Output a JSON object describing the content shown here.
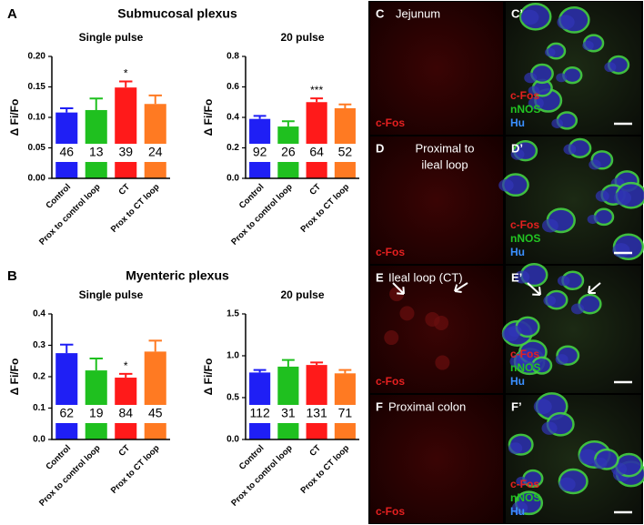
{
  "sections": [
    {
      "letter": "A",
      "title": "Submucosal plexus"
    },
    {
      "letter": "B",
      "title": "Myenteric plexus"
    }
  ],
  "chart_data": [
    {
      "type": "bar",
      "title": "Single pulse",
      "y_label": "Δ Fi/Fo",
      "categories": [
        "Control",
        "Prox to control loop",
        "CT",
        "Prox to CT loop"
      ],
      "values": [
        0.108,
        0.112,
        0.149,
        0.122
      ],
      "errors": [
        0.007,
        0.019,
        0.01,
        0.014
      ],
      "n": [
        46,
        13,
        39,
        24
      ],
      "significance": [
        null,
        null,
        "*",
        null
      ],
      "colors": [
        "#1f1ff5",
        "#1fc01f",
        "#ff1a1a",
        "#ff7a22"
      ],
      "ylim": [
        0,
        0.2
      ],
      "yticks": [
        {
          "value": 0,
          "label": "0.00"
        },
        {
          "value": 0.05,
          "label": "0.05"
        },
        {
          "value": 0.1,
          "label": "0.10"
        },
        {
          "value": 0.15,
          "label": "0.15"
        },
        {
          "value": 0.2,
          "label": "0.20"
        }
      ]
    },
    {
      "type": "bar",
      "title": "20 pulse",
      "y_label": "Δ Fi/Fo",
      "categories": [
        "Control",
        "Prox to control loop",
        "CT",
        "Prox to CT loop"
      ],
      "values": [
        0.39,
        0.34,
        0.5,
        0.46
      ],
      "errors": [
        0.02,
        0.035,
        0.025,
        0.025
      ],
      "n": [
        92,
        26,
        64,
        52
      ],
      "significance": [
        null,
        null,
        "***",
        null
      ],
      "colors": [
        "#1f1ff5",
        "#1fc01f",
        "#ff1a1a",
        "#ff7a22"
      ],
      "ylim": [
        0,
        0.8
      ],
      "yticks": [
        {
          "value": 0,
          "label": "0.0"
        },
        0.2,
        0.4,
        0.6,
        0.8
      ]
    },
    {
      "type": "bar",
      "title": "Single pulse",
      "y_label": "Δ Fi/Fo",
      "categories": [
        "Control",
        "Prox to control loop",
        "CT",
        "Prox to CT loop"
      ],
      "values": [
        0.275,
        0.22,
        0.197,
        0.28
      ],
      "errors": [
        0.027,
        0.038,
        0.012,
        0.035
      ],
      "n": [
        62,
        19,
        84,
        45
      ],
      "significance": [
        null,
        null,
        "*",
        null
      ],
      "colors": [
        "#1f1ff5",
        "#1fc01f",
        "#ff1a1a",
        "#ff7a22"
      ],
      "ylim": [
        0,
        0.4
      ],
      "yticks": [
        {
          "value": 0,
          "label": "0.0"
        },
        0.1,
        0.2,
        0.3,
        0.4
      ]
    },
    {
      "type": "bar",
      "title": "20 pulse",
      "y_label": "Δ Fi/Fo",
      "categories": [
        "Control",
        "Prox to control loop",
        "CT",
        "Prox to CT loop"
      ],
      "values": [
        0.8,
        0.87,
        0.89,
        0.79
      ],
      "errors": [
        0.03,
        0.08,
        0.03,
        0.04
      ],
      "n": [
        112,
        31,
        131,
        71
      ],
      "significance": [
        null,
        null,
        null,
        null
      ],
      "colors": [
        "#1f1ff5",
        "#1fc01f",
        "#ff1a1a",
        "#ff7a22"
      ],
      "ylim": [
        0,
        1.5
      ],
      "yticks": [
        {
          "value": 0,
          "label": "0.0"
        },
        0.5,
        {
          "value": 1,
          "label": "1.0"
        },
        1.5
      ]
    }
  ],
  "panels": [
    {
      "letter": "C",
      "title": [
        "Jejunum"
      ],
      "left_stain": "c-Fos",
      "right_letter": "C’",
      "stains": [
        "c-Fos",
        "nNOS",
        "Hu"
      ]
    },
    {
      "letter": "D",
      "title": [
        "Proximal to",
        "ileal loop"
      ],
      "left_stain": "c-Fos",
      "right_letter": "D’",
      "stains": [
        "c-Fos",
        "nNOS",
        "Hu"
      ]
    },
    {
      "letter": "E",
      "title": [
        "Ileal loop (CT)"
      ],
      "left_stain": "c-Fos",
      "right_letter": "E’",
      "stains": [
        "c-Fos",
        "nNOS",
        "Hu"
      ]
    },
    {
      "letter": "F",
      "title": [
        "Proximal colon"
      ],
      "left_stain": "c-Fos",
      "right_letter": "F’",
      "stains": [
        "c-Fos",
        "nNOS",
        "Hu"
      ]
    }
  ]
}
